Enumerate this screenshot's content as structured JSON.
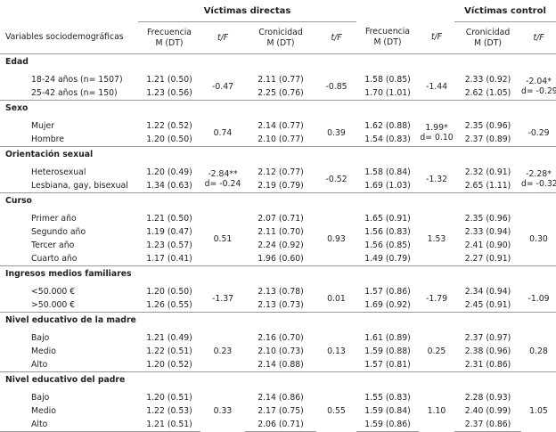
{
  "header": {
    "group_direct": "Víctimas directas",
    "group_control": "Víctimas control",
    "columns": [
      "Variables sociodemográficas",
      "Frecuencia",
      "t/F",
      "Cronicidad",
      "t/F",
      "Frecuencia",
      "t/F",
      "Cronicidad",
      "t/F"
    ],
    "subtitle": "M (DT)"
  },
  "sections": [
    {
      "title": "Edad",
      "rows": [
        {
          "label": "18-24 años (n= 1507)",
          "values": [
            "1.21 (0.50)",
            "2.11 (0.77)",
            "1.58 (0.85)",
            "2.33 (0.92)"
          ]
        },
        {
          "label": "25-42 años (n= 150)",
          "values": [
            "1.23 (0.56)",
            "2.25 (0.76)",
            "1.70 (1.01)",
            "2.62 (1.05)"
          ]
        }
      ],
      "tests": [
        [
          "-0.47"
        ],
        [
          "-0.85"
        ],
        [
          "-1.44"
        ],
        [
          "-2.04*",
          "d= -0.29"
        ]
      ]
    },
    {
      "title": "Sexo",
      "rows": [
        {
          "label": "Mujer",
          "values": [
            "1.22 (0.52)",
            "2.14 (0.77)",
            "1.62 (0.88)",
            "2.35 (0.96)"
          ]
        },
        {
          "label": "Hombre",
          "values": [
            "1.20 (0.50)",
            "2.10 (0.77)",
            "1.54 (0.83)",
            "2.37 (0.89)"
          ]
        }
      ],
      "tests": [
        [
          "0.74"
        ],
        [
          "0.39"
        ],
        [
          "1.99*",
          "d= 0.10"
        ],
        [
          "-0.29"
        ]
      ]
    },
    {
      "title": "Orientación sexual",
      "rows": [
        {
          "label": "Heterosexual",
          "values": [
            "1.20 (0.49)",
            "2.12 (0.77)",
            "1.58 (0.84)",
            "2.32 (0.91)"
          ]
        },
        {
          "label": "Lesbiana, gay, bisexual",
          "values": [
            "1.34 (0.63)",
            "2.19 (0.79)",
            "1.69 (1.03)",
            "2.65 (1.11)"
          ]
        }
      ],
      "tests": [
        [
          "-2.84**",
          "d= -0.24"
        ],
        [
          "-0.52"
        ],
        [
          "-1.32"
        ],
        [
          "-2.28*",
          "d= -0.32"
        ]
      ]
    },
    {
      "title": "Curso",
      "rows": [
        {
          "label": "Primer año",
          "values": [
            "1.21 (0.50)",
            "2.07 (0.71)",
            "1.65 (0.91)",
            "2.35 (0.96)"
          ]
        },
        {
          "label": "Segundo año",
          "values": [
            "1.19 (0.47)",
            "2.11 (0.70)",
            "1.56 (0.83)",
            "2.33 (0.94)"
          ]
        },
        {
          "label": "Tercer año",
          "values": [
            "1.23 (0.57)",
            "2.24 (0.92)",
            "1.56 (0.85)",
            "2.41 (0.90)"
          ]
        },
        {
          "label": "Cuarto año",
          "values": [
            "1.17 (0.41)",
            "1.96 (0.60)",
            "1.49 (0.79)",
            "2.27 (0.91)"
          ]
        }
      ],
      "tests": [
        [
          "0.51"
        ],
        [
          "0.93"
        ],
        [
          "1.53"
        ],
        [
          "0.30"
        ]
      ]
    },
    {
      "title": "Ingresos medios familiares",
      "rows": [
        {
          "label": "<50.000 €",
          "values": [
            "1.20 (0.50)",
            "2.13 (0.78)",
            "1.57 (0.86)",
            "2.34 (0.94)"
          ]
        },
        {
          "label": ">50.000 €",
          "values": [
            "1.26 (0.55)",
            "2.13 (0.73)",
            "1.69 (0.92)",
            "2.45 (0.91)"
          ]
        }
      ],
      "tests": [
        [
          "-1.37"
        ],
        [
          "0.01"
        ],
        [
          "-1.79"
        ],
        [
          "-1.09"
        ]
      ]
    },
    {
      "title": "Nivel educativo de la madre",
      "rows": [
        {
          "label": "Bajo",
          "values": [
            "1.21 (0.49)",
            "2.16 (0.70)",
            "1.61 (0.89)",
            "2.37 (0.97)"
          ]
        },
        {
          "label": "Medio",
          "values": [
            "1.22 (0.51)",
            "2.10 (0.73)",
            "1.59 (0.88)",
            "2.38 (0.96)"
          ]
        },
        {
          "label": "Alto",
          "values": [
            "1.20 (0.52)",
            "2.14 (0.88)",
            "1.57 (0.81)",
            "2.31 (0.86)"
          ]
        }
      ],
      "tests": [
        [
          "0.23"
        ],
        [
          "0.13"
        ],
        [
          "0.25"
        ],
        [
          "0.28"
        ]
      ]
    },
    {
      "title": "Nivel educativo del padre",
      "rows": [
        {
          "label": "Bajo",
          "values": [
            "1.20 (0.51)",
            "2.14 (0.86)",
            "1.55 (0.83)",
            "2.28 (0.93)"
          ]
        },
        {
          "label": "Medio",
          "values": [
            "1.22 (0.53)",
            "2.17 (0.75)",
            "1.59 (0.84)",
            "2.40 (0.99)"
          ]
        },
        {
          "label": "Alto",
          "values": [
            "1.21 (0.51)",
            "2.06 (0.71)",
            "1.59 (0.86)",
            "2.37 (0.86)"
          ]
        }
      ],
      "tests": [
        [
          "0.33"
        ],
        [
          "0.55"
        ],
        [
          "1.10"
        ],
        [
          "1.05"
        ]
      ]
    }
  ]
}
